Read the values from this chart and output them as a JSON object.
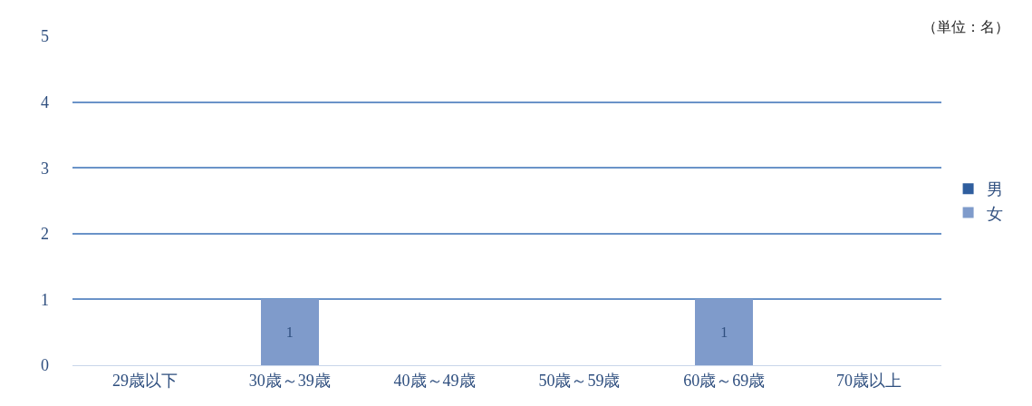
{
  "chart_data": {
    "type": "bar",
    "stacked": true,
    "categories": [
      "29歳以下",
      "30歳～39歳",
      "40歳～49歳",
      "50歳～59歳",
      "60歳～69歳",
      "70歳以上"
    ],
    "series": [
      {
        "name": "男",
        "color": "#2f5e9e",
        "values": [
          0,
          0,
          0,
          0,
          0,
          0
        ]
      },
      {
        "name": "女",
        "color": "#7f9bcb",
        "values": [
          0,
          1,
          0,
          0,
          1,
          0
        ],
        "value_labels": [
          null,
          "1",
          null,
          null,
          "1",
          null
        ]
      }
    ],
    "ylim": [
      0,
      5
    ],
    "yticks": [
      0,
      1,
      2,
      3,
      4,
      5
    ],
    "grid": "y",
    "legend": "right",
    "annotations": [
      "（単位：名）"
    ]
  }
}
